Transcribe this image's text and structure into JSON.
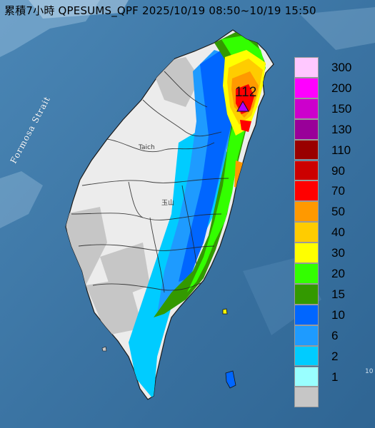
{
  "title": "累積7小時 QPESUMS_QPF 2025/10/19 08:50~10/19 15:50",
  "labels": {
    "strait": "Formosa Strait",
    "taichung": "Taich",
    "yushan": "玉山",
    "max_value": "112",
    "edge_mark": "10"
  },
  "legend": [
    {
      "value": "300",
      "color": "#ffc8ff"
    },
    {
      "value": "200",
      "color": "#ff00ff"
    },
    {
      "value": "150",
      "color": "#cc00cc"
    },
    {
      "value": "130",
      "color": "#990099"
    },
    {
      "value": "110",
      "color": "#990000"
    },
    {
      "value": "90",
      "color": "#cc0000"
    },
    {
      "value": "70",
      "color": "#ff0000"
    },
    {
      "value": "50",
      "color": "#ff9900"
    },
    {
      "value": "40",
      "color": "#ffcc00"
    },
    {
      "value": "30",
      "color": "#ffff00"
    },
    {
      "value": "20",
      "color": "#33ff00"
    },
    {
      "value": "15",
      "color": "#339900"
    },
    {
      "value": "10",
      "color": "#0066ff"
    },
    {
      "value": "6",
      "color": "#1e9bff"
    },
    {
      "value": "2",
      "color": "#00ccff"
    },
    {
      "value": "1",
      "color": "#99ffff"
    },
    {
      "value": "",
      "color": "#c6c6c6"
    }
  ]
}
